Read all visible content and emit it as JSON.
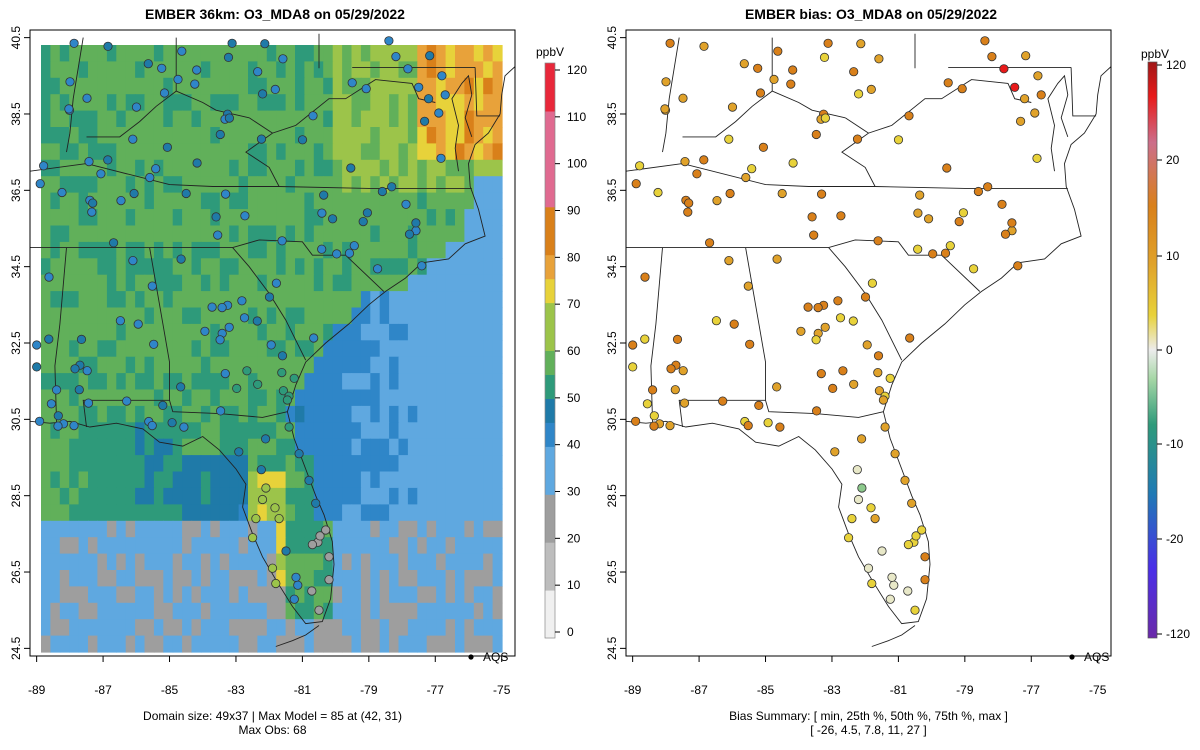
{
  "left_panel": {
    "title": "EMBER 36km: O3_MDA8 on 05/29/2022",
    "footer_line1": "Domain size: 49x37 | Max Model = 85 at (42, 31)",
    "footer_line2": "Max Obs: 68",
    "legend_label": "AQS",
    "colorbar_unit": "ppbV",
    "colorbar_ticks": [
      "0",
      "10",
      "20",
      "30",
      "40",
      "50",
      "60",
      "70",
      "80",
      "90",
      "100",
      "110",
      "120"
    ]
  },
  "right_panel": {
    "title": "EMBER bias: O3_MDA8 on 05/29/2022",
    "footer_line1": "Bias Summary: [ min, 25th %, 50th %, 75th %, max ]",
    "footer_line2": "[ -26,   4.5,   7.8,   11,   27 ]",
    "legend_label": "AQS",
    "colorbar_unit": "ppbV",
    "colorbar_ticks": [
      "-120",
      "-20",
      "-10",
      "0",
      "10",
      "20",
      "120"
    ]
  },
  "axes": {
    "x_ticks": [
      "-89",
      "-87",
      "-85",
      "-83",
      "-81",
      "-79",
      "-77",
      "-75"
    ],
    "y_ticks": [
      "24.5",
      "26.5",
      "28.5",
      "30.5",
      "32.5",
      "34.5",
      "36.5",
      "38.5",
      "40.5"
    ],
    "xlim": [
      -89.2,
      -74.6
    ],
    "ylim": [
      24.3,
      40.7
    ]
  },
  "colors": {
    "conc_scale": [
      "#f0f0f0",
      "#bdbdbd",
      "#9e9e9e",
      "#5fa8e0",
      "#2f86c8",
      "#1f7aa8",
      "#2e9a7a",
      "#61b05a",
      "#9cc44a",
      "#e7d23a",
      "#e8a23a",
      "#d9801a",
      "#e06a90",
      "#e8273a"
    ],
    "bias_scale": [
      "#6a2aa8",
      "#3a2ee8",
      "#1f7ab5",
      "#2e9a7a",
      "#8cc98c",
      "#e8e8c8",
      "#e8d23a",
      "#e0a22a",
      "#d9801a",
      "#cc6e8a",
      "#e81a1a",
      "#b81a1a"
    ]
  },
  "chart_data": [
    {
      "type": "heatmap",
      "title": "EMBER 36km: O3_MDA8 on 05/29/2022",
      "units": "ppbV",
      "value_range": [
        0,
        120
      ],
      "xlim": [
        -89.2,
        -74.6
      ],
      "ylim": [
        24.3,
        40.7
      ],
      "model_max": 85,
      "model_max_cell": [
        42,
        31
      ],
      "obs_max": 68,
      "domain_size": "49x37",
      "legend": "AQS"
    },
    {
      "type": "scatter",
      "title": "EMBER bias: O3_MDA8 on 05/29/2022",
      "units": "ppbV",
      "value_range": [
        -120,
        120
      ],
      "bias_summary": {
        "min": -26,
        "p25": 4.5,
        "p50": 7.8,
        "p75": 11,
        "max": 27
      },
      "legend": "AQS"
    }
  ]
}
